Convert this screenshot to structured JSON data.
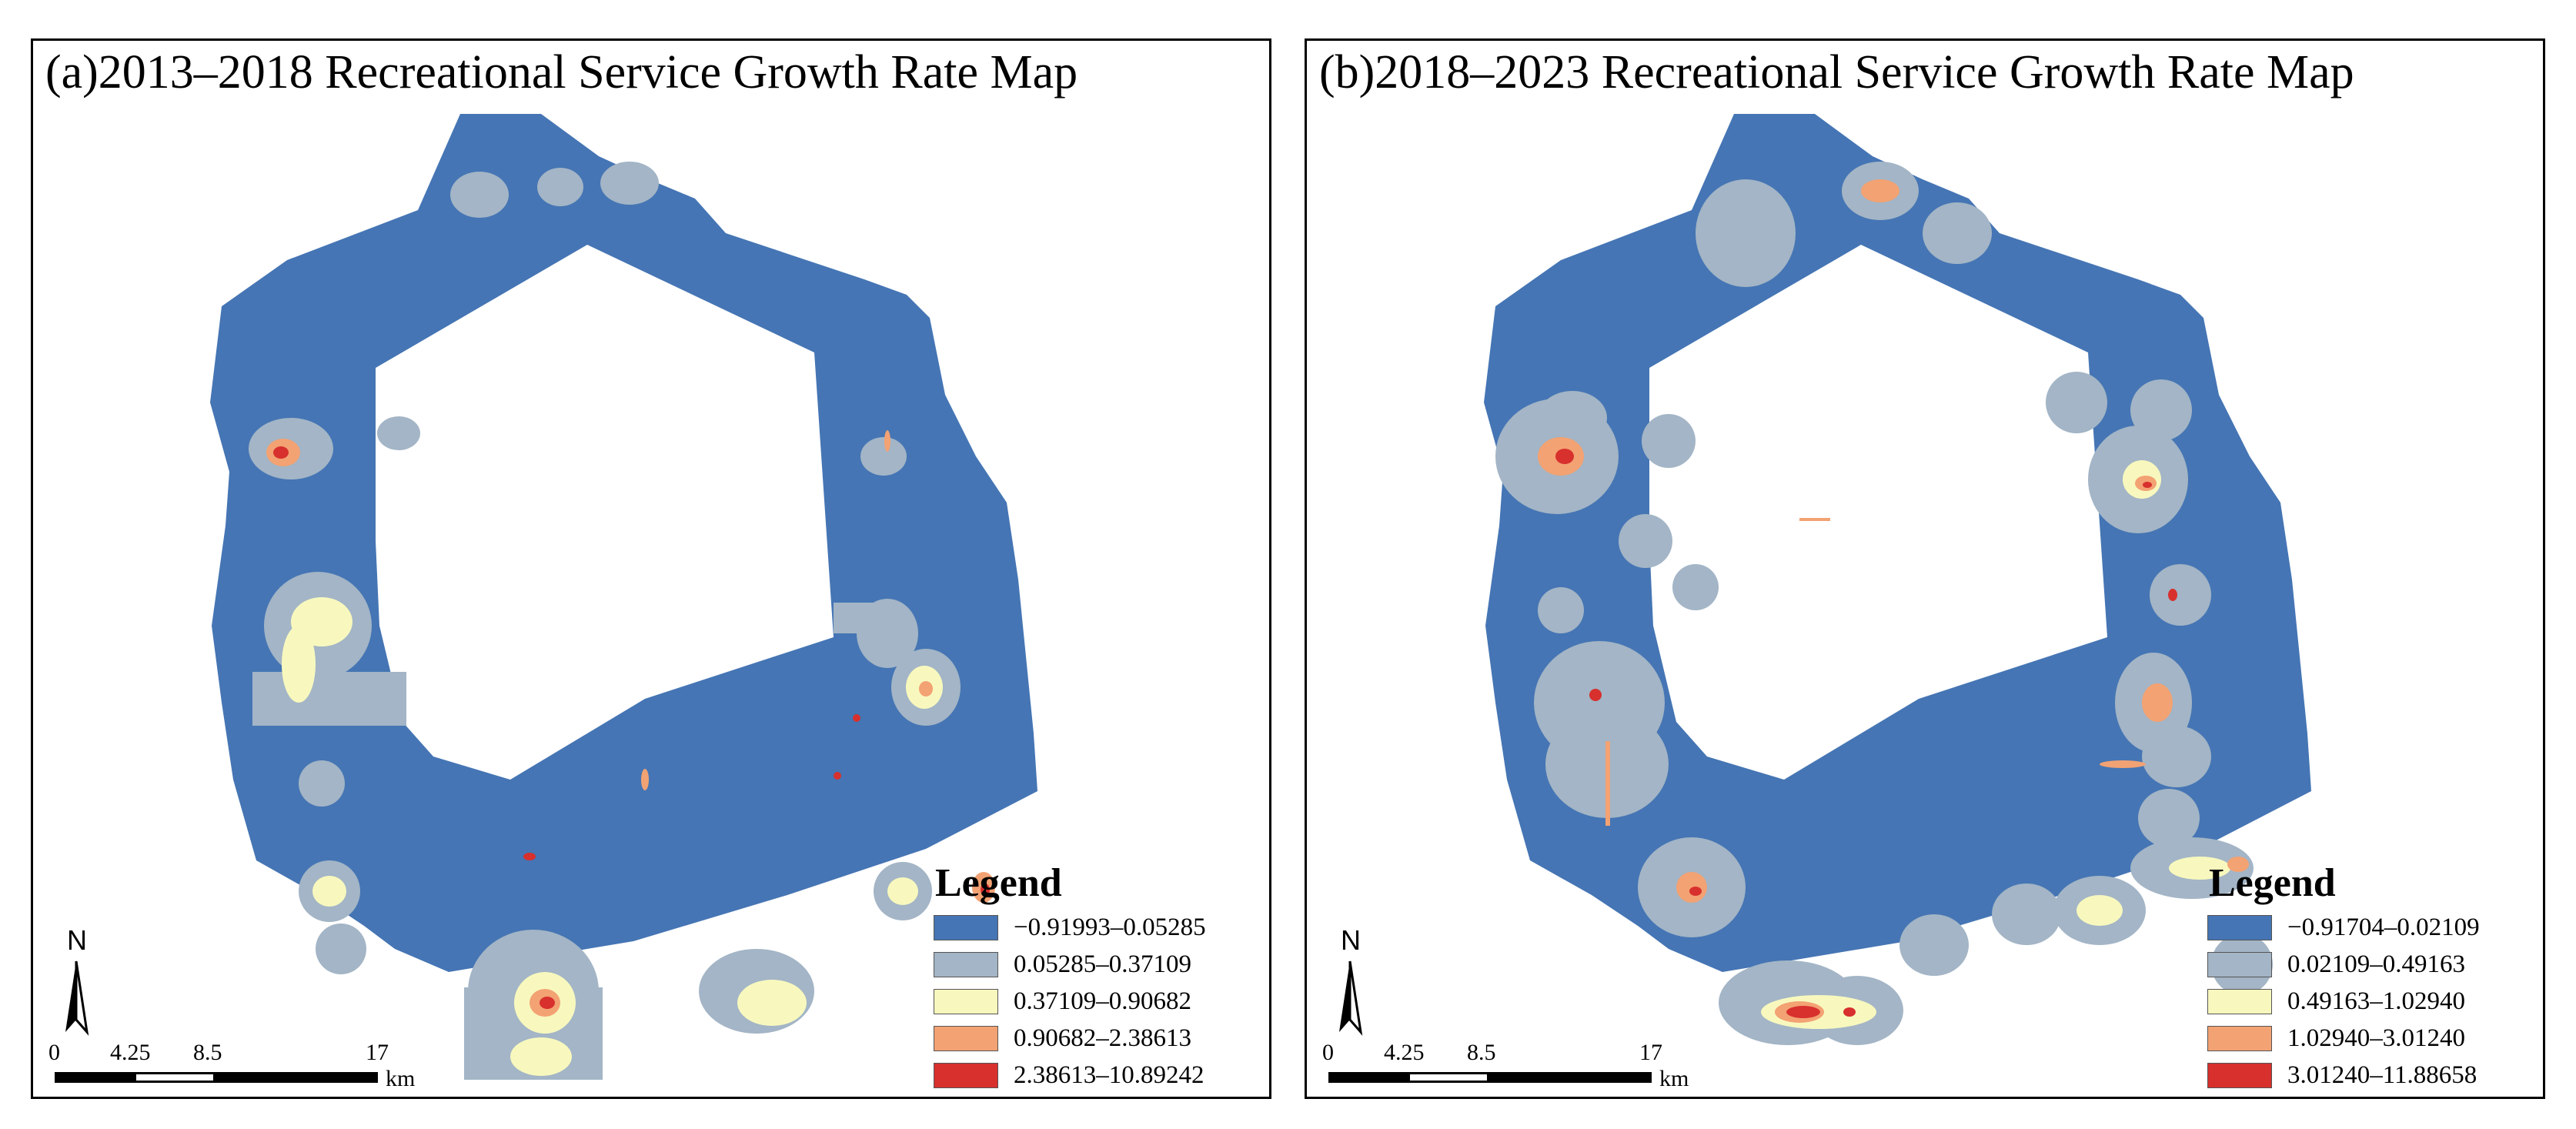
{
  "panels": [
    {
      "id": "a",
      "title": "(a)2013–2018 Recreational Service Growth Rate Map",
      "legend": {
        "title": "Legend",
        "classes": [
          {
            "label": "−0.91993–0.05285",
            "color": "#4575b4"
          },
          {
            "label": "0.05285–0.37109",
            "color": "#a3b5c6"
          },
          {
            "label": "0.37109–0.90682",
            "color": "#f8f8be"
          },
          {
            "label": "0.90682–2.38613",
            "color": "#f3a273"
          },
          {
            "label": "2.38613–10.89242",
            "color": "#d7302d"
          }
        ]
      },
      "north_label": "N",
      "scale": {
        "ticks": [
          "0",
          "4.25",
          "8.5",
          "17"
        ],
        "unit": "km"
      }
    },
    {
      "id": "b",
      "title": "(b)2018–2023 Recreational Service Growth Rate Map",
      "legend": {
        "title": "Legend",
        "classes": [
          {
            "label": "−0.91704–0.02109",
            "color": "#4575b4"
          },
          {
            "label": "0.02109–0.49163",
            "color": "#a3b5c6"
          },
          {
            "label": "0.49163–1.02940",
            "color": "#f8f8be"
          },
          {
            "label": "1.02940–3.01240",
            "color": "#f3a273"
          },
          {
            "label": "3.01240–11.88658",
            "color": "#d7302d"
          }
        ]
      },
      "north_label": "N",
      "scale": {
        "ticks": [
          "0",
          "4.25",
          "8.5",
          "17"
        ],
        "unit": "km"
      }
    }
  ]
}
